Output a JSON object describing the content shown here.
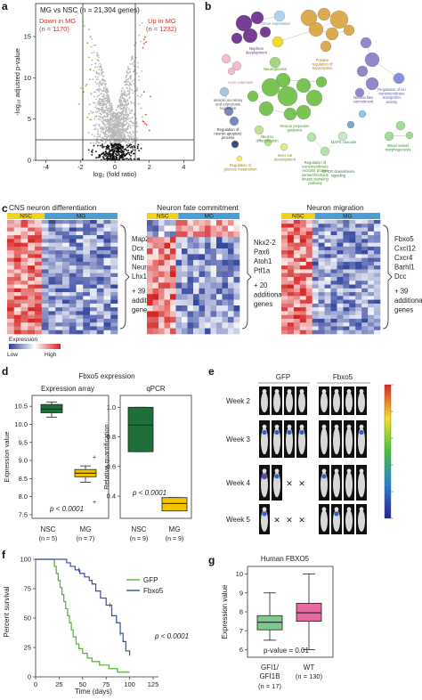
{
  "panels": {
    "a": {
      "letter": "a",
      "title": "MG vs NSC (n = 21,304 genes)",
      "down_label": "Down in MG",
      "down_count": "(n = 1170)",
      "up_label": "Up in MG",
      "up_count": "(n = 1232)",
      "xlabel": "log₂ (fold ratio)",
      "ylabel": "-log₁₀ adjusted p-value"
    },
    "b": {
      "letter": "b",
      "node_labels": [
        "Gene expression",
        "Nephron development",
        "Positive regulation of transcription",
        "Axon extension",
        "Neurogenesis",
        "Vesicle, secretory and exocytosis regulation",
        "Neuron projection guidance",
        "Regulation of neuron apoptotic process",
        "Neuron differentiation",
        "Regulation of glucose metabolism",
        "Inner ear development",
        "Regulation of transmembrane receptor protein serine/threonine kinase signaling pathway",
        "Neuron fate commitment",
        "Regulation of ion transmembrane transporter activity",
        "MAPK cascade",
        "GPCR downstream signaling",
        "Blood vessel morphogenesis"
      ]
    },
    "c": {
      "letter": "c",
      "legend_title": "Expression",
      "legend_low": "Low",
      "legend_high": "High",
      "heatmaps": [
        {
          "title": "CNS neuron differentiation",
          "group1": "NSC",
          "group2": "MG",
          "genes": [
            "Map2",
            "Dcx",
            "Nfib",
            "Neurog2",
            "Lhx1"
          ],
          "additional": [
            "+ 39",
            "additional",
            "genes"
          ]
        },
        {
          "title": "Neuron fate commitment",
          "group1": "NSC",
          "group2": "MG",
          "genes": [
            "Nkx2-2",
            "Pax6",
            "Atoh1",
            "Ptf1a"
          ],
          "additional": [
            "+ 20",
            "additional",
            "genes"
          ]
        },
        {
          "title": "Neuron migration",
          "group1": "NSC",
          "group2": "MG",
          "genes": [
            "Fbxo5",
            "Cxcl12",
            "Cxcr4",
            "Barhl1",
            "Dcc"
          ],
          "additional": [
            "+ 39",
            "additional",
            "genes"
          ]
        }
      ]
    },
    "d": {
      "letter": "d",
      "title": "Fbxo5 expression",
      "array_title": "Expression array",
      "qpcr_title": "qPCR",
      "ylabel_array": "Expression value",
      "ylabel_qpcr": "Relative quantification",
      "p_text": "p < 0.0001",
      "nsc_label": "NSC",
      "nsc_n_array": "(n = 5)",
      "mg_label": "MG",
      "mg_n_array": "(n = 7)",
      "nsc_n_qpcr": "(n = 9)",
      "mg_n_qpcr": "(n = 9)",
      "colors": {
        "nsc": "#1e6f3a",
        "mg": "#f2c500"
      }
    },
    "e": {
      "letter": "e",
      "col_gfp": "GFP",
      "col_fbxo5": "Fbxo5",
      "weeks": [
        "Week 2",
        "Week 3",
        "Week 4",
        "Week 5"
      ]
    },
    "f": {
      "letter": "f",
      "ylabel": "Percent survival",
      "xlabel": "Time (days)",
      "p_text": "p < 0.0001",
      "legend": [
        "GFP",
        "Fbxo5"
      ],
      "colors": {
        "gfp": "#55b033",
        "fbxo5": "#3b4fa0"
      }
    },
    "g": {
      "letter": "g",
      "title": "Human FBXO5",
      "ylabel": "Expression value",
      "p_text": "p-value = 0.01",
      "group1_label": "GFI1/",
      "group1_label2": "GFI1B",
      "group1_n": "(n = 17)",
      "group2_label": "WT",
      "group2_n": "(n = 130)",
      "colors": {
        "g1": "#7fc98f",
        "g2": "#e46aa0"
      }
    }
  },
  "chart_data": [
    {
      "type": "scatter",
      "panel": "a",
      "title": "MG vs NSC (n = 21,304 genes)",
      "xlabel": "log₂ (fold ratio)",
      "ylabel": "-log₁₀ adjusted p-value",
      "xlim": [
        -4.6,
        4.6
      ],
      "ylim": [
        0,
        19
      ],
      "xticks": [
        -4,
        -2,
        0,
        2,
        4
      ],
      "yticks": [
        0,
        5,
        10,
        15
      ],
      "thresholds": {
        "fold_x": [
          -1.4,
          1.6
        ],
        "pvalue_y": 2
      },
      "groups": [
        {
          "name": "Down in MG",
          "count": 1170
        },
        {
          "name": "Up in MG",
          "count": 1232
        }
      ]
    },
    {
      "type": "box",
      "panel": "d-array",
      "title": "Expression array",
      "categories": [
        "NSC",
        "MG"
      ],
      "ylabel": "Expression value",
      "ylim": [
        7.4,
        10.8
      ],
      "yticks": [
        7.5,
        8.0,
        8.5,
        9.0,
        9.5,
        10.0,
        10.5
      ],
      "boxes": [
        {
          "name": "NSC",
          "whisker_low": 10.2,
          "q1": 10.32,
          "median": 10.42,
          "q3": 10.55,
          "whisker_high": 10.62
        },
        {
          "name": "MG",
          "whisker_low": 8.4,
          "q1": 8.55,
          "median": 8.65,
          "q3": 8.75,
          "whisker_high": 8.85,
          "outliers": [
            9.1,
            7.85
          ]
        }
      ]
    },
    {
      "type": "box",
      "panel": "d-qpcr",
      "title": "qPCR",
      "categories": [
        "NSC",
        "MG"
      ],
      "ylabel": "Relative quantification",
      "ylim": [
        0.25,
        1.08
      ],
      "yticks": [
        0.4,
        0.6,
        0.8,
        1.0
      ],
      "boxes": [
        {
          "name": "NSC",
          "whisker_low": 0.7,
          "q1": 0.7,
          "median": 0.88,
          "q3": 1.0,
          "whisker_high": 1.0
        },
        {
          "name": "MG",
          "whisker_low": 0.3,
          "q1": 0.3,
          "median": 0.35,
          "q3": 0.39,
          "whisker_high": 0.39
        }
      ]
    },
    {
      "type": "line",
      "panel": "f",
      "xlabel": "Time (days)",
      "ylabel": "Percent survival",
      "xlim": [
        0,
        125
      ],
      "ylim": [
        0,
        100
      ],
      "xticks": [
        0,
        25,
        50,
        75,
        100,
        125
      ],
      "yticks": [
        0,
        25,
        50,
        75,
        100
      ],
      "series": [
        {
          "name": "GFP",
          "x": [
            0,
            17,
            20,
            22,
            24,
            26,
            28,
            30,
            32,
            34,
            36,
            38,
            40,
            43,
            46,
            50,
            55,
            60,
            68,
            78,
            87,
            100
          ],
          "y": [
            100,
            100,
            94,
            88,
            82,
            76,
            70,
            64,
            58,
            52,
            46,
            40,
            34,
            28,
            24,
            20,
            16,
            13,
            10,
            7,
            4,
            4
          ]
        },
        {
          "name": "Fbxo5",
          "x": [
            0,
            28,
            33,
            37,
            42,
            47,
            52,
            57,
            60,
            64,
            69,
            75,
            81,
            86,
            90,
            93,
            96,
            100
          ],
          "y": [
            100,
            100,
            97,
            94,
            91,
            88,
            85,
            82,
            79,
            73,
            67,
            61,
            52,
            46,
            37,
            30,
            22,
            18
          ]
        }
      ]
    },
    {
      "type": "box",
      "panel": "g",
      "title": "Human FBXO5",
      "categories": [
        "GFI1/GFI1B",
        "WT"
      ],
      "ylabel": "Expression value",
      "ylim": [
        5.6,
        10.4
      ],
      "yticks": [
        6,
        7,
        8,
        9,
        10
      ],
      "boxes": [
        {
          "name": "GFI1/GFI1B",
          "whisker_low": 6.5,
          "q1": 7.05,
          "median": 7.45,
          "q3": 7.8,
          "whisker_high": 9.0
        },
        {
          "name": "WT",
          "whisker_low": 6.0,
          "q1": 7.5,
          "median": 7.95,
          "q3": 8.45,
          "whisker_high": 10.0
        }
      ]
    }
  ]
}
